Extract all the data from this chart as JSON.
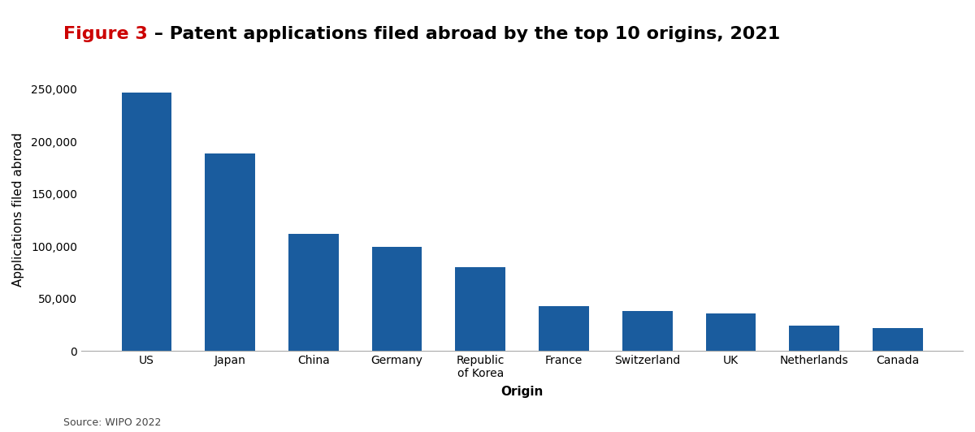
{
  "title_red": "Figure 3",
  "title_black": " – Patent applications filed abroad by the top 10 origins, 2021",
  "categories": [
    "US",
    "Japan",
    "China",
    "Germany",
    "Republic\nof Korea",
    "France",
    "Switzerland",
    "UK",
    "Netherlands",
    "Canada"
  ],
  "values": [
    247000,
    189000,
    112000,
    99000,
    80000,
    43000,
    38000,
    36000,
    24000,
    22000
  ],
  "bar_color": "#1a5c9e",
  "ylabel": "Applications filed abroad",
  "xlabel": "Origin",
  "source": "Source: WIPO 2022",
  "ylim": [
    0,
    270000
  ],
  "yticks": [
    0,
    50000,
    100000,
    150000,
    200000,
    250000
  ],
  "background_color": "#ffffff",
  "title_fontsize": 16,
  "axis_label_fontsize": 11,
  "tick_fontsize": 10,
  "source_fontsize": 9,
  "title_red_color": "#cc0000",
  "title_black_color": "#000000",
  "spine_bottom_color": "#aaaaaa"
}
